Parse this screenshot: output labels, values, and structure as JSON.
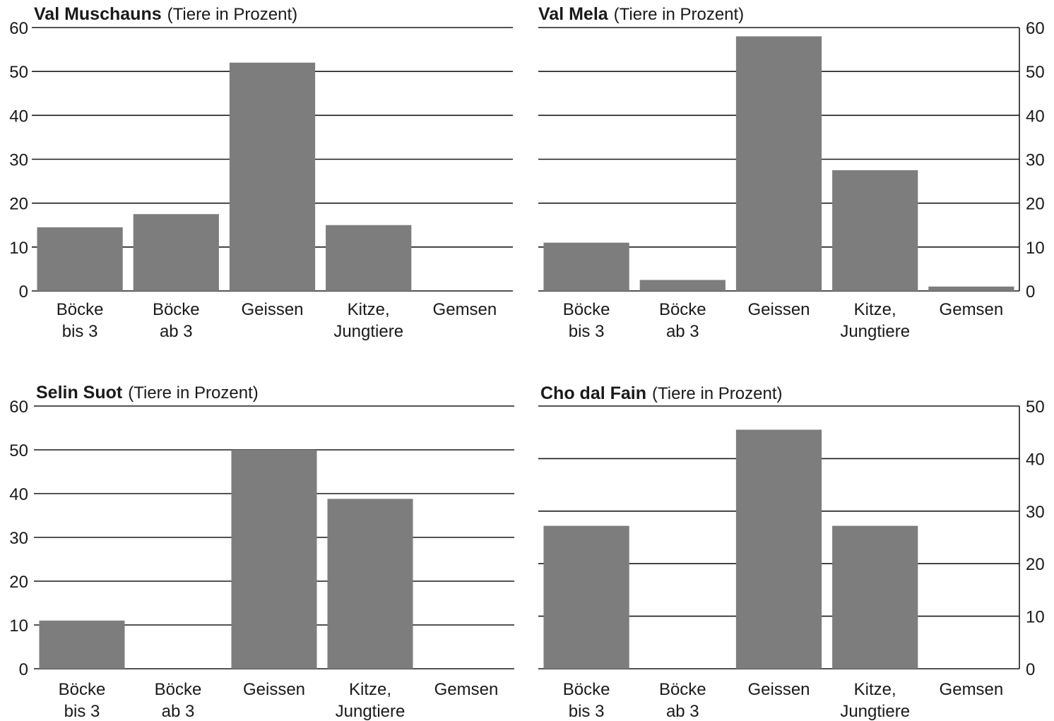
{
  "chart_data": [
    {
      "type": "bar",
      "title": "Val Muschauns",
      "subtitle": "(Tiere in Prozent)",
      "categories": [
        [
          "Böcke",
          "bis 3"
        ],
        [
          "Böcke",
          "ab 3"
        ],
        [
          "Geissen"
        ],
        [
          "Kitze,",
          "Jungtiere"
        ],
        [
          "Gemsen"
        ]
      ],
      "values": [
        14.5,
        17.5,
        52,
        15,
        0
      ],
      "ylim": [
        0,
        60
      ],
      "yticks": [
        "0",
        "10",
        "20",
        "30",
        "40",
        "50",
        "60"
      ],
      "axis_side": "left",
      "grid": true
    },
    {
      "type": "bar",
      "title": "Val Mela",
      "subtitle": "(Tiere in Prozent)",
      "categories": [
        [
          "Böcke",
          "bis 3"
        ],
        [
          "Böcke",
          "ab 3"
        ],
        [
          "Geissen"
        ],
        [
          "Kitze,",
          "Jungtiere"
        ],
        [
          "Gemsen"
        ]
      ],
      "values": [
        11,
        2.5,
        58,
        27.5,
        1
      ],
      "ylim": [
        0,
        60
      ],
      "yticks": [
        "0",
        "10",
        "20",
        "30",
        "40",
        "50",
        "60"
      ],
      "axis_side": "right",
      "grid": true
    },
    {
      "type": "bar",
      "title": "Selin Suot",
      "subtitle": "(Tiere in Prozent)",
      "categories": [
        [
          "Böcke",
          "bis 3"
        ],
        [
          "Böcke",
          "ab 3"
        ],
        [
          "Geissen"
        ],
        [
          "Kitze,",
          "Jungtiere"
        ],
        [
          "Gemsen"
        ]
      ],
      "values": [
        11,
        0,
        50,
        38.8,
        0
      ],
      "ylim": [
        0,
        60
      ],
      "yticks": [
        "0",
        "10",
        "20",
        "30",
        "40",
        "50",
        "60"
      ],
      "axis_side": "left",
      "grid": true
    },
    {
      "type": "bar",
      "title": "Cho dal Fain",
      "subtitle": "(Tiere in Prozent)",
      "categories": [
        [
          "Böcke",
          "bis 3"
        ],
        [
          "Böcke",
          "ab 3"
        ],
        [
          "Geissen"
        ],
        [
          "Kitze,",
          "Jungtiere"
        ],
        [
          "Gemsen"
        ]
      ],
      "values": [
        27.2,
        0,
        45.5,
        27.2,
        0
      ],
      "ylim": [
        0,
        50
      ],
      "yticks": [
        "0",
        "10",
        "20",
        "30",
        "40",
        "50"
      ],
      "axis_side": "right",
      "grid": true
    }
  ]
}
